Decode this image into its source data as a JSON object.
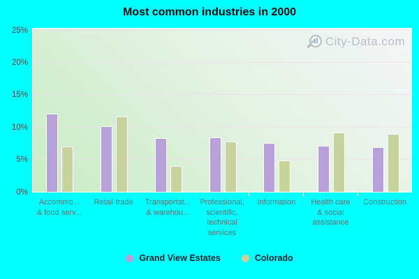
{
  "title": "Most common industries in 2000",
  "watermark": {
    "text": "City-Data.com",
    "icon": "magnifier-chart-icon",
    "color": "#b7bfc5"
  },
  "colors": {
    "page_background": "#00ffff",
    "series1": "#b6a2d8",
    "series2": "#c8d29c",
    "plot_gradient_top_right": "#f4f6f8",
    "plot_gradient_bottom_left": "#c8ecc4",
    "gridline": "#f0dfec",
    "x_label": "#5d7170",
    "y_label": "#404e4e",
    "legend_text": "#16222c"
  },
  "chart_data": {
    "type": "bar",
    "title": "Most common industries in 2000",
    "categories": [
      {
        "label_lines": [
          "Accommo...",
          "& food serv..."
        ]
      },
      {
        "label_lines": [
          "Retail trade"
        ]
      },
      {
        "label_lines": [
          "Transportat...",
          "& warehou..."
        ]
      },
      {
        "label_lines": [
          "Professional,",
          "scientific,",
          "technical",
          "services"
        ]
      },
      {
        "label_lines": [
          "Information"
        ]
      },
      {
        "label_lines": [
          "Health care",
          "& social",
          "assistance"
        ]
      },
      {
        "label_lines": [
          "Construction"
        ]
      }
    ],
    "series": [
      {
        "name": "Grand View Estates",
        "color": "#b6a2d8",
        "values": [
          12.1,
          10.1,
          8.3,
          8.4,
          7.6,
          7.1,
          6.9
        ]
      },
      {
        "name": "Colorado",
        "color": "#c8d29c",
        "values": [
          7.0,
          11.6,
          4.0,
          7.8,
          4.9,
          9.2,
          9.0
        ]
      }
    ],
    "ylabel": "",
    "xlabel": "",
    "ylim": [
      0,
      25
    ],
    "yticks": [
      "0%",
      "5%",
      "10%",
      "15%",
      "20%",
      "25%"
    ],
    "grid": true,
    "legend_position": "bottom"
  },
  "legend": {
    "items": [
      {
        "label": "Grand View Estates",
        "color": "#b6a2d8"
      },
      {
        "label": "Colorado",
        "color": "#c8d29c"
      }
    ]
  }
}
